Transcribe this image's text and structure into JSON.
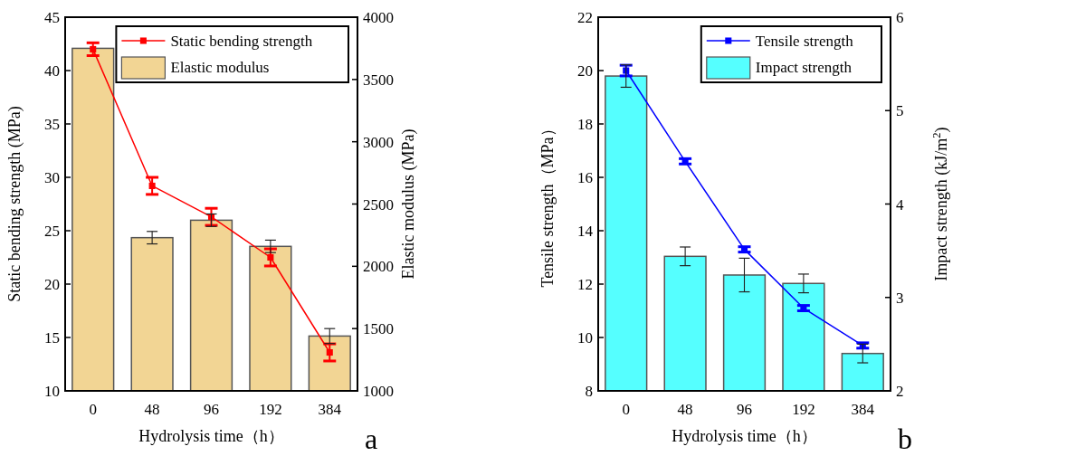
{
  "chart_data": [
    {
      "type": "bar",
      "xlabel": "Hydrolysis time（h）",
      "ylabel": "Static bending strength (MPa)",
      "y2label": "Elastic modulus (MPa)",
      "categories": [
        "0",
        "48",
        "96",
        "192",
        "384"
      ],
      "series": [
        {
          "name": "Static bending strength",
          "type": "line",
          "color": "#ff0000",
          "values": [
            42.0,
            29.2,
            26.3,
            22.5,
            13.6
          ],
          "errors": [
            0.6,
            0.8,
            0.8,
            0.8,
            0.8
          ]
        },
        {
          "name": "Elastic modulus",
          "axis": "y2",
          "color": "#f2d594",
          "values": [
            3750,
            2230,
            2370,
            2160,
            1440
          ],
          "errors": [
            null,
            50,
            50,
            50,
            60
          ]
        }
      ],
      "ylim": [
        10,
        45
      ],
      "yticks": [
        10,
        15,
        20,
        25,
        30,
        35,
        40,
        45
      ],
      "y2lim": [
        1000,
        4000
      ],
      "y2ticks": [
        1000,
        1500,
        2000,
        2500,
        3000,
        3500,
        4000
      ],
      "legend": "top right",
      "marker": "square",
      "annotations": [
        "a"
      ]
    },
    {
      "type": "bar",
      "xlabel": "Hydrolysis time（h）",
      "ylabel": "Tensile strength（MPa）",
      "y2label": "Impact strength (kJ/m$^{2}$)",
      "categories": [
        "0",
        "48",
        "96",
        "192",
        "384"
      ],
      "series": [
        {
          "name": "Tensile strength",
          "type": "line",
          "color": "#0000ff",
          "values": [
            20.0,
            16.6,
            13.3,
            11.1,
            9.7
          ],
          "errors": [
            0.2,
            0.1,
            0.1,
            0.1,
            0.1
          ]
        },
        {
          "name": "Impact strength",
          "axis": "y2",
          "color": "#55ffff",
          "values": [
            5.37,
            3.44,
            3.24,
            3.15,
            2.4
          ],
          "errors": [
            0.12,
            0.1,
            0.18,
            0.1,
            0.1
          ]
        }
      ],
      "ylim": [
        8,
        22
      ],
      "yticks": [
        8,
        10,
        12,
        14,
        16,
        18,
        20,
        22
      ],
      "y2lim": [
        2,
        6
      ],
      "y2ticks": [
        2,
        3,
        4,
        5,
        6
      ],
      "legend": "top right",
      "marker": "square",
      "annotations": [
        "b"
      ]
    }
  ]
}
